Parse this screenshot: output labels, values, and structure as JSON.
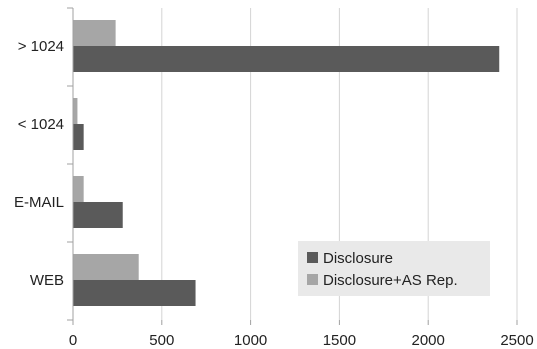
{
  "chart_data": {
    "type": "bar",
    "orientation": "horizontal",
    "categories": [
      "> 1024",
      "< 1024",
      "E-MAIL",
      "WEB"
    ],
    "series": [
      {
        "name": "Disclosure",
        "values": [
          2400,
          60,
          280,
          690
        ],
        "color": "#5a5a5a"
      },
      {
        "name": "Disclosure+AS Rep.",
        "values": [
          240,
          25,
          60,
          370
        ],
        "color": "#a6a6a6"
      }
    ],
    "xlim": [
      0,
      2500
    ],
    "xticks": [
      "0",
      "500",
      "1000",
      "1500",
      "2000",
      "2500"
    ],
    "grid": "vertical",
    "legend_position": "bottom-right"
  }
}
